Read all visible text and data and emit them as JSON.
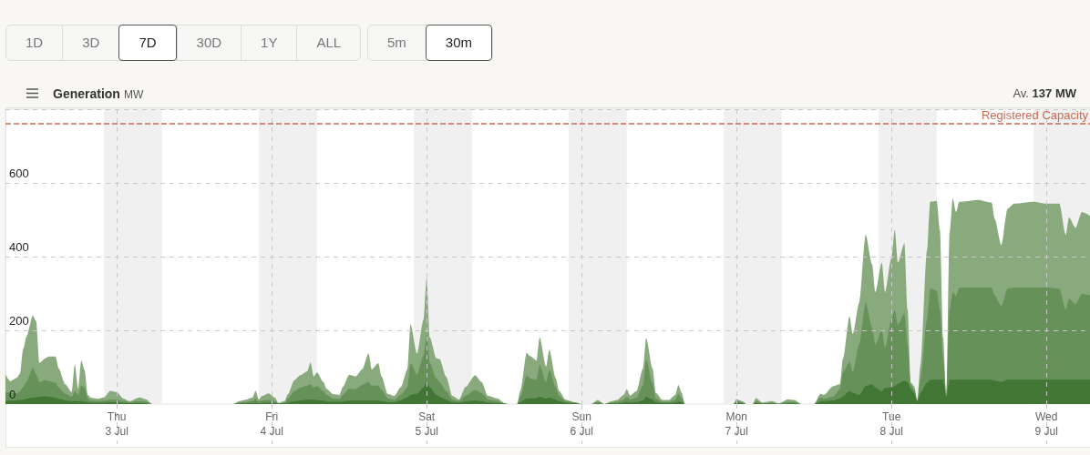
{
  "chart_data": {
    "type": "area",
    "title": "Generation",
    "subtitle": "MW",
    "annotations": [
      "1D",
      "3D",
      "7D",
      "30D",
      "1Y",
      "ALL",
      "5m",
      "30m",
      "Av. 137 MW"
    ],
    "x": [
      "--07-02T06:45",
      "--07-02T07:30",
      "--07-02T08:30",
      "--07-02T09:00",
      "--07-02T09:30",
      "--07-02T10:00",
      "--07-02T11:00",
      "--07-02T11:30",
      "--07-02T12:00",
      "--07-02T13:00",
      "--07-02T13:30",
      "--07-02T14:30",
      "--07-02T15:00",
      "--07-02T16:00",
      "--07-02T17:00",
      "--07-02T17:30",
      "--07-02T18:00",
      "--07-02T18:30",
      "--07-02T19:00",
      "--07-02T19:30",
      "--07-02T20:00",
      "--07-02T21:00",
      "--07-02T22:00",
      "--07-02T23:00",
      "--07-03T00:00",
      "--07-03T01:00",
      "--07-03T02:00",
      "--07-03T03:30",
      "--07-03T04:30",
      "--07-03T05:30",
      "--07-03T18:00",
      "--07-03T19:00",
      "--07-03T20:00",
      "--07-03T21:00",
      "--07-03T21:30",
      "--07-03T22:00",
      "--07-03T22:30",
      "--07-03T23:30",
      "--07-04T00:30",
      "--07-04T01:00",
      "--07-04T02:00",
      "--07-04T02:30",
      "--07-04T03:30",
      "--07-04T04:30",
      "--07-04T05:30",
      "--07-04T06:00",
      "--07-04T06:30",
      "--07-04T07:00",
      "--07-04T08:00",
      "--07-04T08:30",
      "--07-04T09:30",
      "--07-04T10:30",
      "--07-04T11:00",
      "--07-04T12:00",
      "--07-04T13:00",
      "--07-04T14:00",
      "--07-04T15:00",
      "--07-04T15:30",
      "--07-04T16:30",
      "--07-04T17:00",
      "--07-04T18:00",
      "--07-04T19:00",
      "--07-04T20:00",
      "--07-04T21:00",
      "--07-04T21:30",
      "--07-04T22:30",
      "--07-04T23:30",
      "--07-05T00:00",
      "--07-05T00:30",
      "--07-05T01:30",
      "--07-05T02:00",
      "--07-05T03:00",
      "--07-05T04:00",
      "--07-05T05:00",
      "--07-05T06:00",
      "--07-05T07:30",
      "--07-05T08:30",
      "--07-05T09:30",
      "--07-05T11:00",
      "--07-05T12:00",
      "--07-05T12:30",
      "--07-05T14:00",
      "--07-05T14:30",
      "--07-05T15:30",
      "--07-05T16:00",
      "--07-05T17:00",
      "--07-05T17:30",
      "--07-05T18:30",
      "--07-05T19:00",
      "--07-05T20:00",
      "--07-05T20:30",
      "--07-05T21:30",
      "--07-05T23:00",
      "--07-06T00:00",
      "--07-06T01:30",
      "--07-06T02:30",
      "--07-06T03:30",
      "--07-06T04:30",
      "--07-06T05:30",
      "--07-06T06:30",
      "--07-06T07:00",
      "--07-06T07:30",
      "--07-06T08:30",
      "--07-06T09:30",
      "--07-06T10:00",
      "--07-06T11:00",
      "--07-06T11:30",
      "--07-06T12:30",
      "--07-06T13:30",
      "--07-06T14:30",
      "--07-06T15:00",
      "--07-06T15:30",
      "--07-06T16:00",
      "--07-06T23:30",
      "--07-07T00:00",
      "--07-07T01:00",
      "--07-07T01:30",
      "--07-07T02:30",
      "--07-07T03:00",
      "--07-07T04:00",
      "--07-07T05:30",
      "--07-07T06:30",
      "--07-07T08:00",
      "--07-07T09:00",
      "--07-07T10:00",
      "--07-07T12:00",
      "--07-07T13:00",
      "--07-07T13:30",
      "--07-07T15:00",
      "--07-07T16:00",
      "--07-07T16:30",
      "--07-07T17:30",
      "--07-07T18:00",
      "--07-07T19:00",
      "--07-07T20:00",
      "--07-07T21:00",
      "--07-07T21:30",
      "--07-07T22:30",
      "--07-07T23:00",
      "--07-08T00:00",
      "--07-08T00:30",
      "--07-08T01:00",
      "--07-08T02:00",
      "--07-08T02:30",
      "--07-08T03:00",
      "--07-08T03:30",
      "--07-08T04:00",
      "--07-08T04:30",
      "--07-08T05:30",
      "--07-08T06:00",
      "--07-08T07:00",
      "--07-08T07:30",
      "--07-08T08:00",
      "--07-08T08:30",
      "--07-08T09:00",
      "--07-08T09:30",
      "--07-08T10:00",
      "--07-08T10:30",
      "--07-08T13:30",
      "--07-08T15:30",
      "--07-08T16:00",
      "--07-08T17:00",
      "--07-08T18:00",
      "--07-08T19:00",
      "--07-08T22:00",
      "--07-09T00:00",
      "--07-09T02:00",
      "--07-09T03:00",
      "--07-09T03:30",
      "--07-09T04:30",
      "--07-09T05:30",
      "--07-09T06:45"
    ],
    "series": [
      {
        "color": "#427635",
        "values": [
          8,
          9,
          10,
          11,
          12,
          14,
          18,
          18,
          20,
          21,
          20,
          17,
          14,
          10,
          8,
          8,
          7,
          8,
          7,
          5,
          4,
          4,
          4,
          5,
          5,
          3,
          2,
          3,
          2,
          0,
          0,
          2,
          2,
          3,
          4,
          2,
          3,
          4,
          3,
          1,
          2,
          4,
          8,
          10,
          12,
          12,
          12,
          11,
          9,
          7,
          6,
          6,
          7,
          9,
          9,
          10,
          10,
          9,
          9,
          8,
          5,
          5,
          10,
          18,
          25,
          28,
          45,
          60,
          45,
          25,
          20,
          12,
          5,
          4,
          7,
          10,
          8,
          4,
          3,
          1,
          0,
          0,
          6,
          15,
          15,
          16,
          20,
          15,
          18,
          12,
          8,
          4,
          2,
          0,
          0,
          2,
          0,
          2,
          2,
          4,
          6,
          4,
          5,
          10,
          20,
          12,
          5,
          3,
          3,
          4,
          6,
          5,
          0,
          0,
          3,
          2,
          0,
          0,
          3,
          1,
          2,
          0,
          2,
          2,
          0,
          0,
          7,
          8,
          10,
          15,
          21,
          35,
          30,
          25,
          49,
          54,
          45,
          35,
          44,
          45,
          49,
          55,
          63,
          60,
          40,
          30,
          7,
          30,
          58,
          66,
          66,
          66,
          66,
          20,
          66,
          66,
          66,
          66,
          66,
          66,
          63,
          60,
          66,
          66,
          66,
          66,
          66,
          66,
          66,
          66,
          66,
          66
        ]
      },
      {
        "color": "#66925a",
        "values": [
          25,
          21,
          19,
          24,
          34,
          46,
          80,
          62,
          40,
          44,
          42,
          41,
          31,
          18,
          12,
          27,
          18,
          42,
          38,
          10,
          5,
          4,
          5,
          7,
          7,
          5,
          3,
          5,
          4,
          0,
          0,
          2,
          4,
          5,
          10,
          4,
          7,
          8,
          5,
          1,
          2,
          11,
          27,
          35,
          38,
          43,
          33,
          37,
          26,
          18,
          9,
          8,
          18,
          33,
          31,
          42,
          50,
          41,
          41,
          30,
          10,
          7,
          15,
          27,
          85,
          52,
          85,
          130,
          65,
          45,
          40,
          23,
          7,
          4,
          15,
          28,
          22,
          8,
          5,
          1,
          0,
          0,
          14,
          63,
          55,
          50,
          86,
          45,
          75,
          33,
          14,
          4,
          2,
          0,
          0,
          4,
          0,
          2,
          4,
          8,
          14,
          8,
          13,
          40,
          100,
          43,
          10,
          3,
          3,
          8,
          22,
          10,
          0,
          0,
          5,
          2,
          0,
          0,
          5,
          1,
          2,
          1,
          4,
          3,
          0,
          0,
          11,
          7,
          10,
          25,
          66,
          80,
          57,
          137,
          226,
          155,
          117,
          165,
          109,
          185,
          206,
          160,
          182,
          102,
          12,
          10,
          2,
          38,
          170,
          247,
          242,
          190,
          58,
          3,
          190,
          238,
          228,
          250,
          250,
          250,
          231,
          206,
          247,
          250,
          250,
          250,
          247,
          190,
          219,
          205,
          233,
          229
        ]
      },
      {
        "color": "#88aa7d",
        "values": [
          47,
          32,
          42,
          48,
          104,
          123,
          142,
          145,
          52,
          60,
          67,
          71,
          51,
          26,
          13,
          73,
          17,
          68,
          47,
          10,
          8,
          6,
          9,
          24,
          20,
          7,
          3,
          10,
          7,
          0,
          0,
          4,
          6,
          9,
          22,
          6,
          12,
          17,
          9,
          1,
          4,
          12,
          30,
          34,
          39,
          58,
          30,
          38,
          25,
          16,
          12,
          11,
          21,
          37,
          35,
          42,
          77,
          44,
          61,
          37,
          12,
          10,
          21,
          49,
          106,
          57,
          98,
          153,
          70,
          54,
          62,
          40,
          10,
          4,
          24,
          40,
          30,
          10,
          7,
          1,
          0,
          0,
          16,
          61,
          60,
          52,
          74,
          42,
          54,
          25,
          14,
          4,
          1,
          0,
          0,
          5,
          0,
          3,
          5,
          13,
          20,
          11,
          17,
          46,
          59,
          41,
          15,
          5,
          5,
          13,
          24,
          15,
          0,
          0,
          5,
          3,
          0,
          0,
          8,
          2,
          4,
          1,
          7,
          6,
          0,
          0,
          10,
          10,
          29,
          14,
          37,
          123,
          103,
          113,
          184,
          170,
          142,
          184,
          151,
          168,
          218,
          169,
          191,
          95,
          6,
          9,
          2,
          38,
          189,
          236,
          243,
          217,
          57,
          2,
          208,
          254,
          227,
          233,
          238,
          231,
          208,
          165,
          217,
          228,
          233,
          228,
          231,
          203,
          221,
          207,
          222,
          216
        ]
      }
    ],
    "stacked": true,
    "marker": "none",
    "grid": true,
    "xlim": [
      "--07-02T06:45",
      "--07-09T06:45"
    ],
    "xticks": [
      {
        "value": "--07-03",
        "label": "Thu\n3 Jul"
      },
      {
        "value": "--07-04",
        "label": "Fri\n4 Jul"
      },
      {
        "value": "--07-05",
        "label": "Sat\n5 Jul"
      },
      {
        "value": "--07-06",
        "label": "Sun\n6 Jul"
      },
      {
        "value": "--07-07",
        "label": "Mon\n7 Jul"
      },
      {
        "value": "--07-08",
        "label": "Tue\n8 Jul"
      },
      {
        "value": "--07-09",
        "label": "Wed\n9 Jul"
      }
    ],
    "ylim": [
      0,
      800
    ],
    "yticks": [
      0,
      200,
      400,
      600,
      {
        "value": 800,
        "label": null
      }
    ],
    "ref_lines": [
      {
        "axis": "y",
        "value": 760,
        "label": "Registered Capacity",
        "color": "#c96a52",
        "line_style": "dashed"
      }
    ],
    "bands": [
      {
        "axis": "x",
        "from": "--07-02T22:00",
        "to": "--07-03T07:00",
        "color": "#f0f0f0"
      },
      {
        "axis": "x",
        "from": "--07-03T22:00",
        "to": "--07-04T07:00",
        "color": "#f0f0f0"
      },
      {
        "axis": "x",
        "from": "--07-04T22:00",
        "to": "--07-05T07:00",
        "color": "#f0f0f0"
      },
      {
        "axis": "x",
        "from": "--07-05T22:00",
        "to": "--07-06T07:00",
        "color": "#f0f0f0"
      },
      {
        "axis": "x",
        "from": "--07-06T22:00",
        "to": "--07-07T07:00",
        "color": "#f0f0f0"
      },
      {
        "axis": "x",
        "from": "--07-07T22:00",
        "to": "--07-08T07:00",
        "color": "#f0f0f0"
      },
      {
        "axis": "x",
        "from": "--07-08T22:00",
        "to": "--07-09T06:45",
        "color": "#f0f0f0"
      }
    ]
  }
}
